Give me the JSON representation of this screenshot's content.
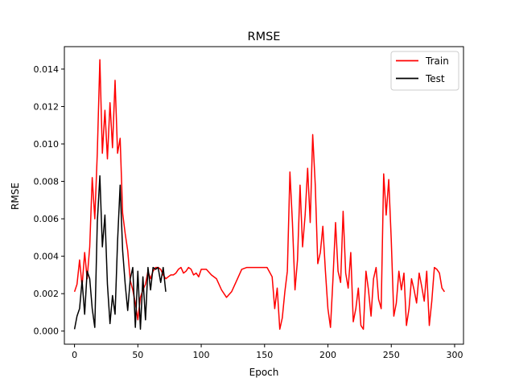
{
  "chart_data": {
    "type": "line",
    "title": "RMSE",
    "xlabel": "Epoch",
    "ylabel": "RMSE",
    "xlim": [
      -8,
      307
    ],
    "ylim": [
      -0.0007,
      0.0152
    ],
    "xticks": [
      0,
      50,
      100,
      150,
      200,
      250,
      300
    ],
    "yticks": [
      0.0,
      0.002,
      0.004,
      0.006,
      0.008,
      0.01,
      0.012,
      0.014
    ],
    "ytick_labels": [
      "0.000",
      "0.002",
      "0.004",
      "0.006",
      "0.008",
      "0.010",
      "0.012",
      "0.014"
    ],
    "grid": false,
    "legend": "top-right",
    "series": [
      {
        "name": "Train",
        "color": "#ff0000",
        "x": [
          0,
          2,
          4,
          6,
          8,
          10,
          12,
          14,
          16,
          18,
          20,
          22,
          24,
          26,
          28,
          30,
          32,
          34,
          36,
          38,
          40,
          42,
          44,
          46,
          48,
          50,
          52,
          54,
          56,
          58,
          60,
          62,
          64,
          66,
          68,
          70,
          72,
          74,
          76,
          78,
          80,
          82,
          84,
          86,
          88,
          90,
          92,
          94,
          96,
          98,
          100,
          104,
          108,
          112,
          116,
          120,
          124,
          128,
          132,
          136,
          140,
          144,
          148,
          152,
          156,
          158,
          160,
          162,
          164,
          166,
          168,
          170,
          172,
          174,
          176,
          178,
          180,
          182,
          184,
          186,
          188,
          190,
          192,
          194,
          196,
          198,
          200,
          202,
          204,
          206,
          208,
          210,
          212,
          214,
          216,
          218,
          220,
          222,
          224,
          226,
          228,
          230,
          232,
          234,
          236,
          238,
          240,
          242,
          244,
          246,
          248,
          250,
          252,
          254,
          256,
          258,
          260,
          262,
          264,
          266,
          268,
          270,
          272,
          274,
          276,
          278,
          280,
          282,
          284,
          286,
          288,
          290,
          292
        ],
        "y": [
          0.0021,
          0.0025,
          0.0038,
          0.0024,
          0.0042,
          0.0028,
          0.0045,
          0.0082,
          0.006,
          0.0095,
          0.0145,
          0.0095,
          0.0118,
          0.0092,
          0.0122,
          0.0098,
          0.0134,
          0.0095,
          0.0103,
          0.0063,
          0.0052,
          0.0043,
          0.0027,
          0.0022,
          0.0015,
          0.0006,
          0.0018,
          0.0022,
          0.0025,
          0.0032,
          0.0028,
          0.0032,
          0.0034,
          0.0034,
          0.0033,
          0.003,
          0.0028,
          0.0029,
          0.003,
          0.003,
          0.0031,
          0.0033,
          0.0034,
          0.0031,
          0.0032,
          0.0034,
          0.0033,
          0.003,
          0.0031,
          0.0029,
          0.0033,
          0.0033,
          0.003,
          0.0028,
          0.0022,
          0.0018,
          0.0021,
          0.0027,
          0.0033,
          0.0034,
          0.0034,
          0.0034,
          0.0034,
          0.0034,
          0.0029,
          0.0012,
          0.0023,
          0.0001,
          0.0007,
          0.0021,
          0.0032,
          0.0085,
          0.0058,
          0.0022,
          0.0038,
          0.0078,
          0.0045,
          0.0062,
          0.0087,
          0.0058,
          0.0105,
          0.0078,
          0.0036,
          0.0042,
          0.0056,
          0.0032,
          0.0012,
          0.0002,
          0.0028,
          0.0058,
          0.0032,
          0.0026,
          0.0064,
          0.0031,
          0.0023,
          0.0042,
          0.0005,
          0.0012,
          0.0023,
          0.0003,
          0.0001,
          0.0032,
          0.0022,
          0.0008,
          0.0028,
          0.0034,
          0.0017,
          0.0012,
          0.0084,
          0.0062,
          0.0081,
          0.0049,
          0.0008,
          0.0015,
          0.0032,
          0.0022,
          0.0031,
          0.0003,
          0.0012,
          0.0028,
          0.0022,
          0.0015,
          0.0031,
          0.0024,
          0.0016,
          0.0032,
          0.0003,
          0.0016,
          0.0034,
          0.0033,
          0.0031,
          0.0023,
          0.0021
        ]
      },
      {
        "name": "Test",
        "color": "#000000",
        "x": [
          0,
          2,
          4,
          6,
          8,
          10,
          12,
          14,
          16,
          18,
          20,
          22,
          24,
          26,
          28,
          30,
          32,
          34,
          36,
          38,
          40,
          42,
          44,
          46,
          48,
          50,
          52,
          54,
          56,
          58,
          60,
          62,
          64,
          66,
          68,
          70,
          72
        ],
        "y": [
          0.0001,
          0.0008,
          0.0012,
          0.0027,
          0.0009,
          0.0032,
          0.0028,
          0.0012,
          0.0002,
          0.0058,
          0.0083,
          0.0045,
          0.0062,
          0.0025,
          0.0004,
          0.0019,
          0.0009,
          0.0048,
          0.0078,
          0.0043,
          0.0025,
          0.0011,
          0.0028,
          0.0034,
          0.0002,
          0.0032,
          0.0001,
          0.0029,
          0.0006,
          0.0034,
          0.0022,
          0.0034,
          0.0033,
          0.0034,
          0.0026,
          0.0034,
          0.0021
        ]
      }
    ]
  }
}
